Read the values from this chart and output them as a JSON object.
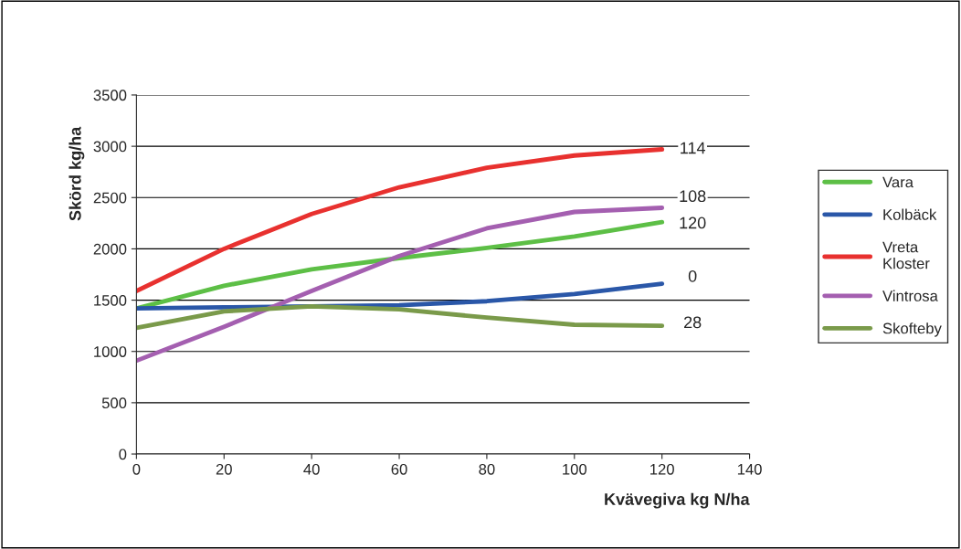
{
  "chart_data": {
    "type": "line",
    "xlabel": "Kvävegiva kg N/ha",
    "ylabel": "Skörd kg/ha",
    "x": [
      0,
      20,
      40,
      60,
      80,
      100,
      120
    ],
    "series": [
      {
        "name": "Vara",
        "color": "#5dbf46",
        "values": [
          1420,
          1640,
          1800,
          1910,
          2010,
          2120,
          2260
        ]
      },
      {
        "name": "Kolbäck",
        "color": "#2a57a8",
        "values": [
          1420,
          1430,
          1440,
          1450,
          1490,
          1560,
          1660
        ]
      },
      {
        "name": "Vreta\nKloster",
        "color": "#e8312f",
        "values": [
          1590,
          2000,
          2340,
          2600,
          2790,
          2910,
          2970
        ]
      },
      {
        "name": "Vintrosa",
        "color": "#a45fb0",
        "values": [
          910,
          1240,
          1590,
          1930,
          2200,
          2360,
          2400
        ]
      },
      {
        "name": "Skofteby",
        "color": "#7a9a4a",
        "values": [
          1230,
          1390,
          1440,
          1410,
          1330,
          1260,
          1250
        ]
      }
    ],
    "annotations": [
      {
        "text": "114",
        "y": 2970
      },
      {
        "text": "108",
        "y": 2500
      },
      {
        "text": "120",
        "y": 2240
      },
      {
        "text": "0",
        "y": 1720
      },
      {
        "text": "28",
        "y": 1270
      }
    ],
    "xlim": [
      0,
      140
    ],
    "xticks": [
      0,
      20,
      40,
      60,
      80,
      100,
      120,
      140
    ],
    "ylim": [
      0,
      3500
    ],
    "yticks": [
      0,
      500,
      1000,
      1500,
      2000,
      2500,
      3000,
      3500
    ],
    "grid": "y",
    "legend": "right",
    "marker": "none",
    "line_style": "solid"
  }
}
